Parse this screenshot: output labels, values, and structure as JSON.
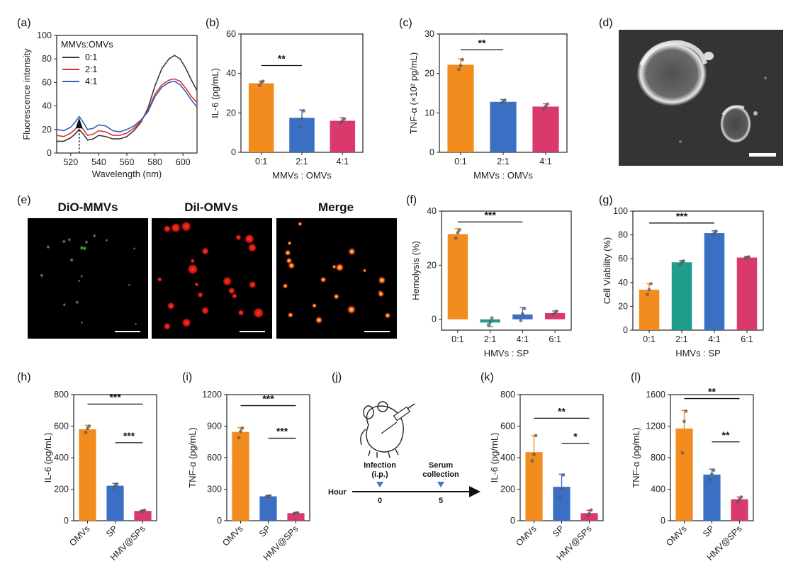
{
  "colors": {
    "orange": "#f28c1e",
    "blue": "#3a6fc4",
    "pink": "#d93a6b",
    "teal": "#1e9c8c",
    "black_line": "#3b3b3b",
    "red_line": "#e0302e",
    "blue_line": "#2f62b8",
    "arrow": "#3a78c9"
  },
  "panel_labels": [
    "(a)",
    "(b)",
    "(c)",
    "(d)",
    "(e)",
    "(f)",
    "(g)",
    "(h)",
    "(i)",
    "(j)",
    "(k)",
    "(l)"
  ],
  "micro": {
    "titles": [
      "DiO-MMVs",
      "DiI-OMVs",
      "Merge"
    ]
  },
  "schematic": {
    "infection": "Infection",
    "ip": "(i.p.)",
    "serum": "Serum",
    "collection": "collection",
    "hour": "Hour",
    "t0": "0",
    "t5": "5"
  },
  "chart_data": [
    {
      "id": "a",
      "type": "line",
      "xlabel": "Wavelength (nm)",
      "ylabel": "Fluorescence intensity",
      "xlim": [
        510,
        610
      ],
      "ylim": [
        0,
        100
      ],
      "xticks": [
        520,
        540,
        560,
        580,
        600
      ],
      "yticks": [
        0,
        20,
        40,
        60,
        80,
        100
      ],
      "legend_title": "MMVs:OMVs",
      "legend_position": "top-left",
      "series": [
        {
          "name": "0:1",
          "x": [
            510,
            515,
            520,
            523,
            526,
            529,
            532,
            536,
            540,
            545,
            550,
            555,
            560,
            565,
            570,
            575,
            580,
            585,
            590,
            594,
            598,
            602,
            606,
            610
          ],
          "y": [
            10,
            10,
            13,
            16,
            20,
            16,
            11,
            12,
            15,
            14,
            12,
            12,
            14,
            19,
            26,
            38,
            57,
            72,
            80,
            83,
            80,
            72,
            62,
            53
          ]
        },
        {
          "name": "2:1",
          "x": [
            510,
            515,
            520,
            523,
            526,
            529,
            532,
            536,
            540,
            545,
            550,
            555,
            560,
            565,
            570,
            575,
            580,
            585,
            590,
            594,
            598,
            602,
            606,
            610
          ],
          "y": [
            15,
            14,
            17,
            20,
            24,
            20,
            15,
            16,
            19,
            18,
            15,
            15,
            17,
            21,
            27,
            36,
            50,
            58,
            62,
            63,
            61,
            55,
            48,
            43
          ]
        },
        {
          "name": "4:1",
          "x": [
            510,
            515,
            520,
            523,
            526,
            529,
            532,
            536,
            540,
            545,
            550,
            555,
            560,
            565,
            570,
            575,
            580,
            585,
            590,
            594,
            598,
            602,
            606,
            610
          ],
          "y": [
            20,
            19,
            22,
            26,
            31,
            26,
            20,
            21,
            24,
            23,
            19,
            18,
            20,
            23,
            28,
            35,
            48,
            56,
            60,
            61,
            58,
            52,
            45,
            39
          ]
        }
      ],
      "annotation_arrow_x": 526
    },
    {
      "id": "b",
      "type": "bar",
      "categories": [
        "0:1",
        "2:1",
        "4:1"
      ],
      "values": [
        35,
        17.5,
        16
      ],
      "errors": [
        1.2,
        4,
        1.5
      ],
      "points": [
        [
          34,
          35.5,
          36
        ],
        [
          13,
          17,
          21
        ],
        [
          15,
          16,
          17
        ]
      ],
      "xlabel": "MMVs : OMVs",
      "ylabel": "IL-6 (pg/mL)",
      "ylim": [
        0,
        60
      ],
      "yticks": [
        0,
        20,
        40,
        60
      ],
      "bar_colors": [
        "#f28c1e",
        "#3a6fc4",
        "#d93a6b"
      ],
      "significance": [
        {
          "from": 0,
          "to": 1,
          "label": "**",
          "y": 44
        }
      ]
    },
    {
      "id": "c",
      "type": "bar",
      "categories": [
        "0:1",
        "2:1",
        "4:1"
      ],
      "values": [
        22.2,
        12.8,
        11.6
      ],
      "errors": [
        1.5,
        0.6,
        0.7
      ],
      "points": [
        [
          21,
          22,
          23.5
        ],
        [
          12.5,
          12.8,
          13.2
        ],
        [
          11,
          11.6,
          12.2
        ]
      ],
      "xlabel": "MMVs : OMVs",
      "ylabel": "TNF-α (×10² pg/mL)",
      "ylim": [
        0,
        30
      ],
      "yticks": [
        0,
        10,
        20,
        30
      ],
      "bar_colors": [
        "#f28c1e",
        "#3a6fc4",
        "#d93a6b"
      ],
      "significance": [
        {
          "from": 0,
          "to": 1,
          "label": "**",
          "y": 26
        }
      ]
    },
    {
      "id": "f",
      "type": "bar",
      "categories": [
        "0:1",
        "2:1",
        "4:1",
        "6:1"
      ],
      "values": [
        31.5,
        -1.2,
        1.8,
        2.3
      ],
      "errors": [
        2,
        1.5,
        2.5,
        0.8
      ],
      "points": [
        [
          30,
          32,
          33
        ],
        [
          -2,
          -1,
          0.5
        ],
        [
          -0.5,
          2,
          4
        ],
        [
          1.8,
          2.3,
          3
        ]
      ],
      "xlabel": "HMVs : SP",
      "ylabel": "Hemolysis (%)",
      "ylim": [
        -4,
        40
      ],
      "yticks": [
        0,
        20,
        40
      ],
      "bar_colors": [
        "#f28c1e",
        "#1e9c8c",
        "#3a6fc4",
        "#d93a6b"
      ],
      "significance": [
        {
          "from": 0,
          "to": 2,
          "label": "***",
          "y": 36
        }
      ]
    },
    {
      "id": "g",
      "type": "bar",
      "categories": [
        "0:1",
        "2:1",
        "4:1",
        "6:1"
      ],
      "values": [
        34,
        57,
        81.5,
        61
      ],
      "errors": [
        5,
        1.5,
        2,
        1
      ],
      "points": [
        [
          30,
          34,
          39
        ],
        [
          55,
          57,
          58
        ],
        [
          80,
          81.5,
          83
        ],
        [
          60,
          61,
          61.5
        ]
      ],
      "xlabel": "HMVs : SP",
      "ylabel": "Cell Viability (%)",
      "ylim": [
        0,
        100
      ],
      "yticks": [
        0,
        20,
        40,
        60,
        80,
        100
      ],
      "bar_colors": [
        "#f28c1e",
        "#1e9c8c",
        "#3a6fc4",
        "#d93a6b"
      ],
      "significance": [
        {
          "from": 0,
          "to": 2,
          "label": "***",
          "y": 90
        }
      ]
    },
    {
      "id": "h",
      "type": "bar",
      "categories": [
        "OMVs",
        "SP",
        "HMV@SPs"
      ],
      "values": [
        580,
        222,
        62
      ],
      "errors": [
        25,
        15,
        5
      ],
      "points": [
        [
          560,
          585,
          600
        ],
        [
          210,
          222,
          232
        ],
        [
          58,
          62,
          66
        ]
      ],
      "xlabel": "",
      "ylabel": "IL-6 (pg/mL)",
      "ylim": [
        0,
        800
      ],
      "yticks": [
        0,
        200,
        400,
        600,
        800
      ],
      "bar_colors": [
        "#f28c1e",
        "#3a6fc4",
        "#d93a6b"
      ],
      "significance": [
        {
          "from": 0,
          "to": 2,
          "label": "***",
          "y": 740
        },
        {
          "from": 1,
          "to": 2,
          "label": "***",
          "y": 495
        }
      ]
    },
    {
      "id": "i",
      "type": "bar",
      "categories": [
        "OMVs",
        "SP",
        "HMV@SPs"
      ],
      "values": [
        845,
        232,
        72
      ],
      "errors": [
        40,
        8,
        6
      ],
      "points": [
        [
          790,
          850,
          880
        ],
        [
          228,
          232,
          236
        ],
        [
          68,
          72,
          76
        ]
      ],
      "xlabel": "",
      "ylabel": "TNF-α (pg/mL)",
      "ylim": [
        0,
        1200
      ],
      "yticks": [
        0,
        300,
        600,
        900,
        1200
      ],
      "bar_colors": [
        "#f28c1e",
        "#3a6fc4",
        "#d93a6b"
      ],
      "significance": [
        {
          "from": 0,
          "to": 2,
          "label": "***",
          "y": 1095
        },
        {
          "from": 1,
          "to": 2,
          "label": "***",
          "y": 785
        }
      ]
    },
    {
      "id": "k",
      "type": "bar",
      "categories": [
        "OMVs",
        "SP",
        "HMV@SPs"
      ],
      "values": [
        435,
        215,
        48
      ],
      "errors": [
        105,
        80,
        18
      ],
      "points": [
        [
          380,
          420,
          540
        ],
        [
          150,
          200,
          290
        ],
        [
          30,
          45,
          68
        ]
      ],
      "xlabel": "",
      "ylabel": "IL-6 (pg/mL)",
      "ylim": [
        0,
        800
      ],
      "yticks": [
        0,
        200,
        400,
        600,
        800
      ],
      "bar_colors": [
        "#f28c1e",
        "#3a6fc4",
        "#d93a6b"
      ],
      "significance": [
        {
          "from": 0,
          "to": 2,
          "label": "**",
          "y": 650
        },
        {
          "from": 1,
          "to": 2,
          "label": "*",
          "y": 490
        }
      ]
    },
    {
      "id": "l",
      "type": "bar",
      "categories": [
        "OMVs",
        "SP",
        "HMV@SPs"
      ],
      "values": [
        1170,
        585,
        272
      ],
      "errors": [
        230,
        70,
        30
      ],
      "points": [
        [
          860,
          1260,
          1390
        ],
        [
          520,
          590,
          640
        ],
        [
          240,
          270,
          300
        ]
      ],
      "xlabel": "",
      "ylabel": "TNF-α (pg/mL)",
      "ylim": [
        0,
        1600
      ],
      "yticks": [
        0,
        400,
        800,
        1200,
        1600
      ],
      "bar_colors": [
        "#f28c1e",
        "#3a6fc4",
        "#d93a6b"
      ],
      "significance": [
        {
          "from": 0,
          "to": 2,
          "label": "**",
          "y": 1550
        },
        {
          "from": 1,
          "to": 2,
          "label": "**",
          "y": 1000
        }
      ]
    }
  ]
}
